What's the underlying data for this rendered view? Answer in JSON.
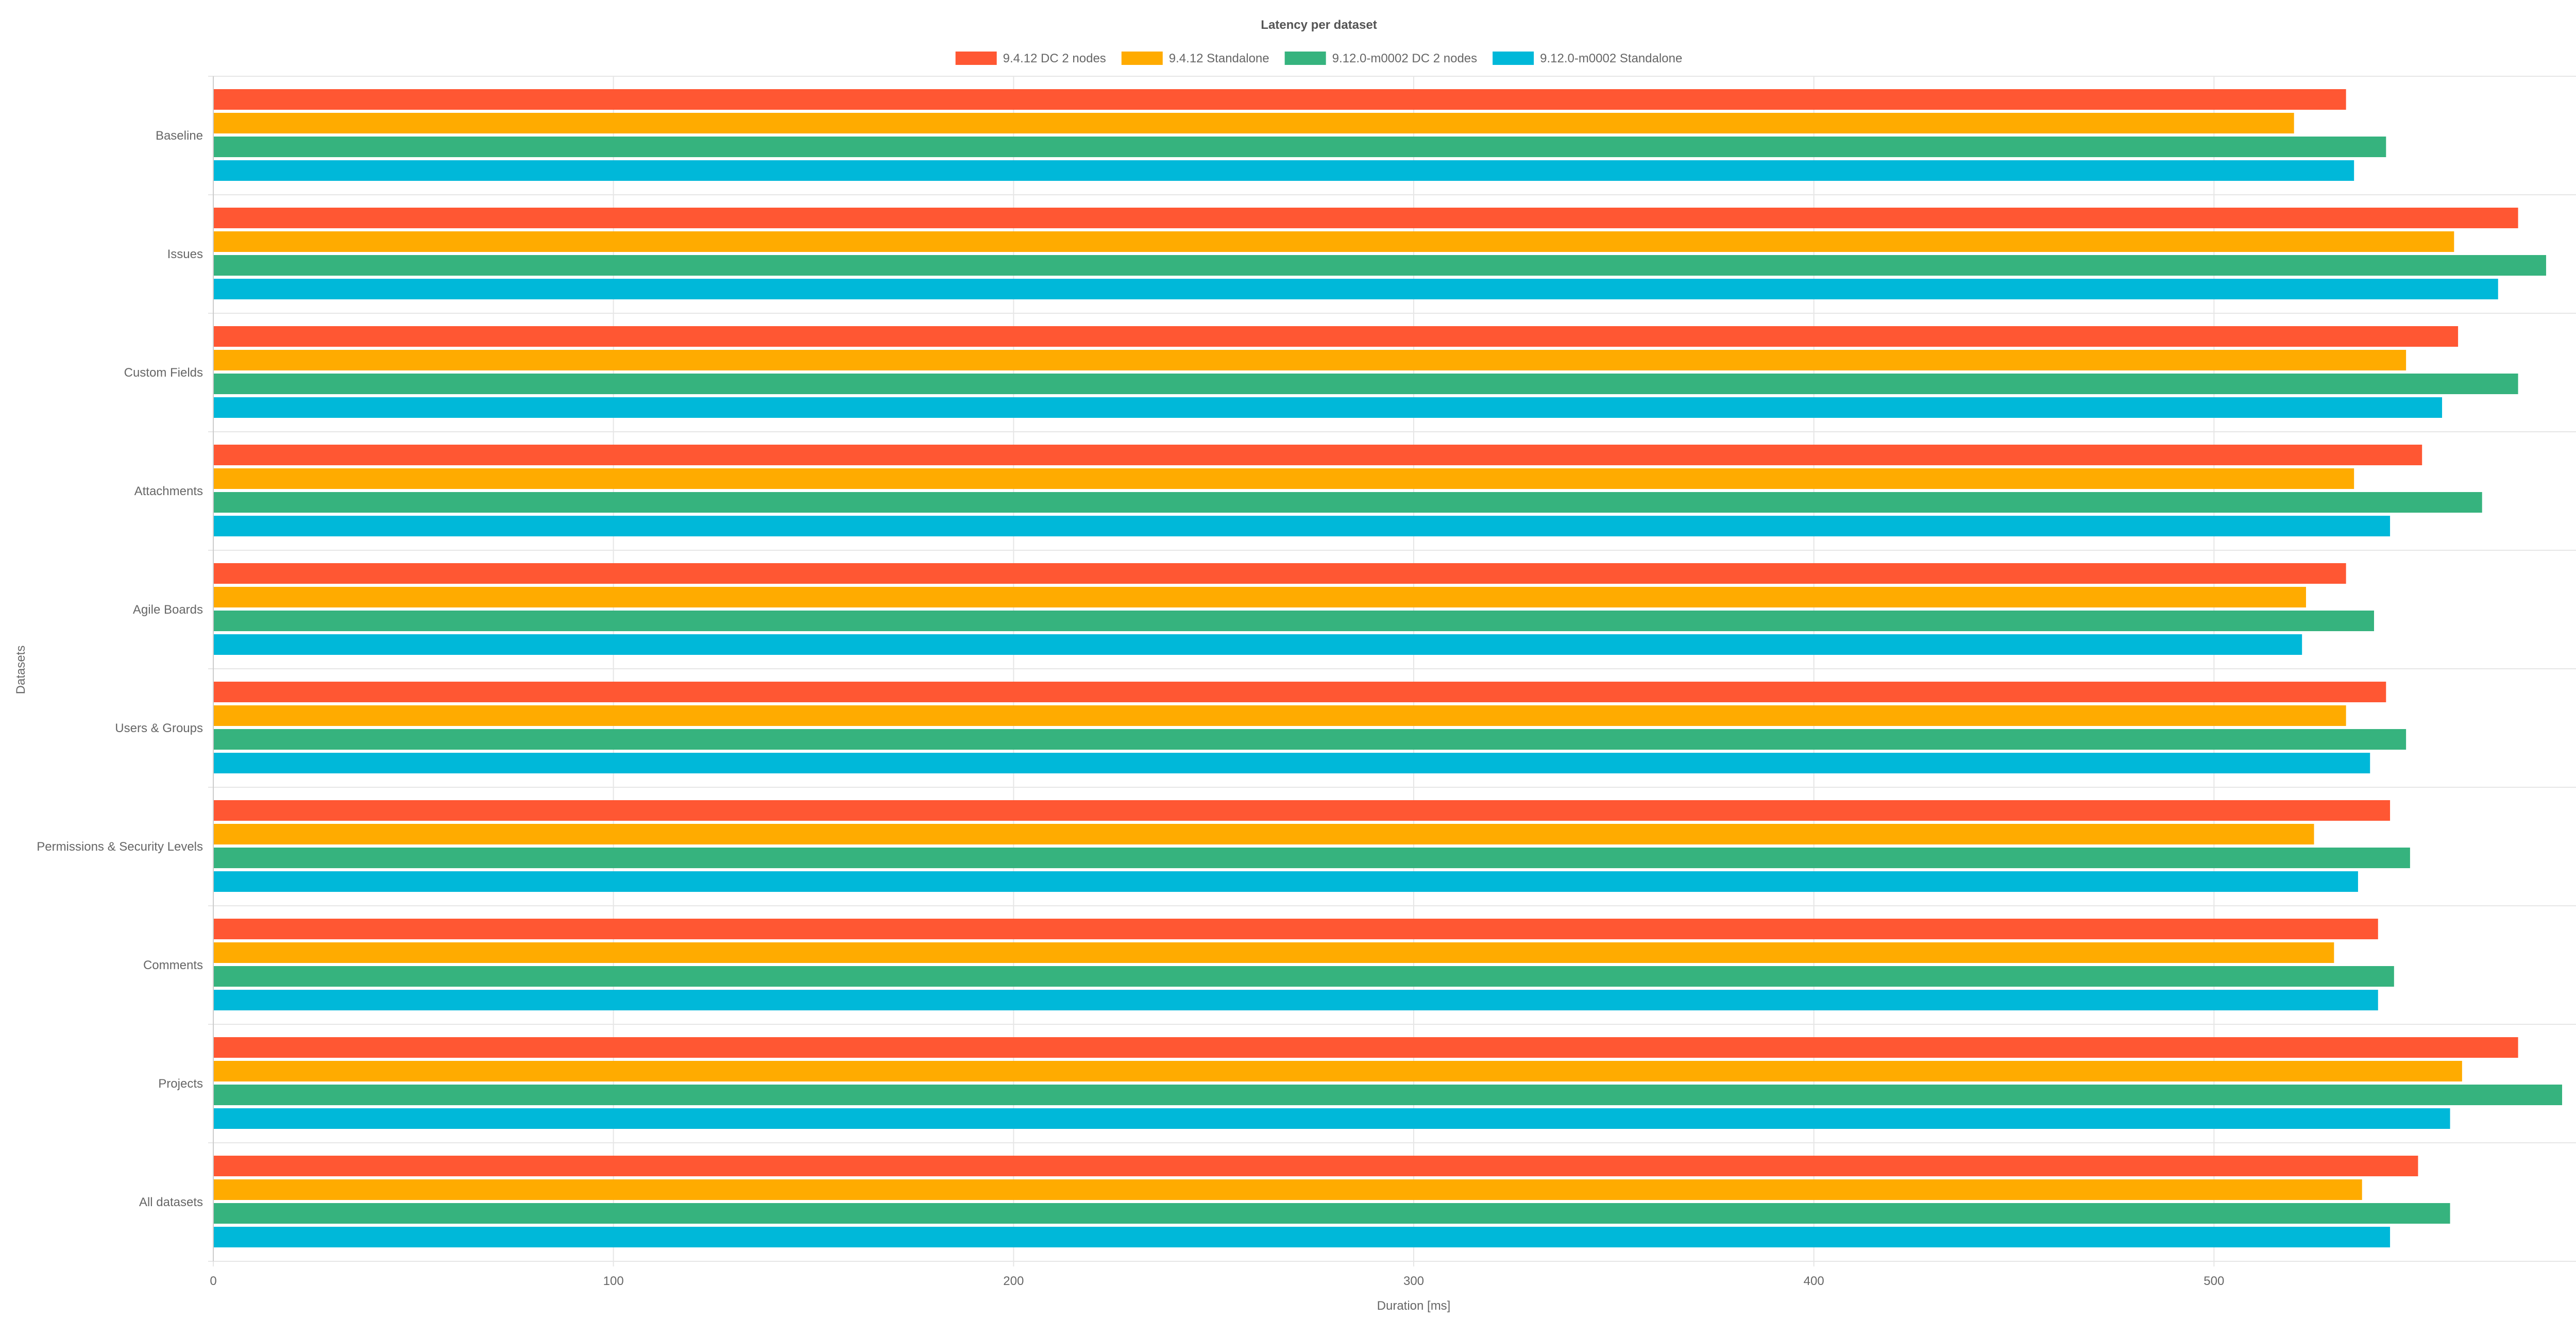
{
  "chart_data": {
    "type": "bar",
    "orientation": "horizontal",
    "title": "Latency per dataset",
    "xlabel": "Duration [ms]",
    "ylabel": "Datasets",
    "xlim": [
      0,
      600
    ],
    "xticks": [
      "0",
      "100",
      "200",
      "300",
      "400",
      "500",
      "600"
    ],
    "grid": true,
    "legend_position": "top-center",
    "categories": [
      "Baseline",
      "Issues",
      "Custom Fields",
      "Attachments",
      "Agile Boards",
      "Users & Groups",
      "Permissions & Security Levels",
      "Comments",
      "Projects",
      "All datasets"
    ],
    "series": [
      {
        "name": "9.4.12 DC 2 nodes",
        "color": "#ff5733",
        "values": [
          533,
          576,
          561,
          552,
          533,
          543,
          544,
          541,
          576,
          551
        ]
      },
      {
        "name": "9.4.12 Standalone",
        "color": "#ffab00",
        "values": [
          520,
          560,
          548,
          535,
          523,
          533,
          525,
          530,
          562,
          537
        ]
      },
      {
        "name": "9.12.0-m0002 DC 2 nodes",
        "color": "#36b37e",
        "values": [
          543,
          583,
          576,
          567,
          540,
          548,
          549,
          545,
          587,
          559
        ]
      },
      {
        "name": "9.12.0-m0002 Standalone",
        "color": "#00b8d9",
        "values": [
          535,
          571,
          557,
          544,
          522,
          539,
          536,
          541,
          559,
          544
        ]
      }
    ]
  }
}
